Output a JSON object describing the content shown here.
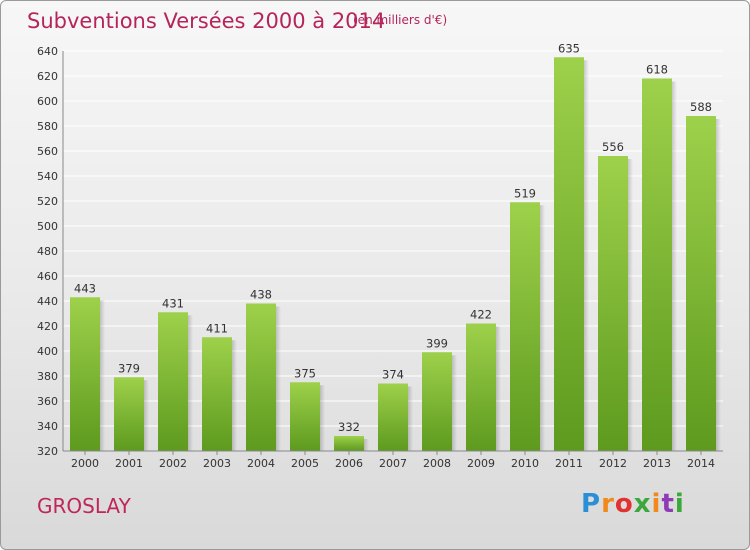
{
  "page": {
    "title": "Subventions Versées 2000 à 2014",
    "subtitle": "(en milliers d'€)",
    "city": "GROSLAY",
    "logo": "Proxiti"
  },
  "colors": {
    "title": "#b5245a",
    "bar_light": "#9ed14b",
    "bar_dark": "#5d9a1e",
    "grid": "#ffffff"
  },
  "chart_data": {
    "type": "bar",
    "title": "Subventions Versées 2000 à 2014",
    "subtitle": "(en milliers d'€)",
    "xlabel": "",
    "ylabel": "",
    "ylim": [
      320,
      640
    ],
    "yticks": [
      320,
      340,
      360,
      380,
      400,
      420,
      440,
      460,
      480,
      500,
      520,
      540,
      560,
      580,
      600,
      620,
      640
    ],
    "grid": true,
    "legend": "none",
    "categories": [
      "2000",
      "2001",
      "2002",
      "2003",
      "2004",
      "2005",
      "2006",
      "2007",
      "2008",
      "2009",
      "2010",
      "2011",
      "2012",
      "2013",
      "2014"
    ],
    "values": [
      443,
      379,
      431,
      411,
      438,
      375,
      332,
      374,
      399,
      422,
      519,
      635,
      556,
      618,
      588
    ]
  }
}
